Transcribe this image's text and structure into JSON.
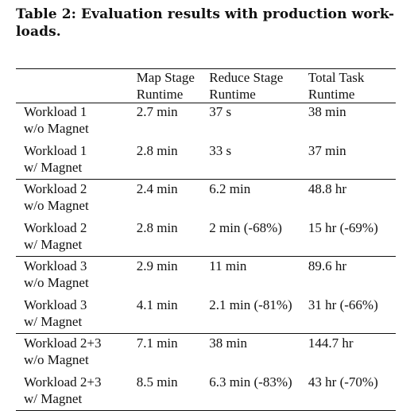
{
  "caption": {
    "line1": "Table 2: Evaluation results with production work-",
    "line2": "loads."
  },
  "table": {
    "headers": [
      [
        "",
        ""
      ],
      [
        "Map Stage",
        "Runtime"
      ],
      [
        "Reduce Stage",
        "Runtime"
      ],
      [
        "Total Task",
        "Runtime"
      ]
    ],
    "rows": [
      {
        "workload": [
          "Workload 1",
          "w/o Magnet"
        ],
        "map": "2.7 min",
        "reduce": "37 s",
        "total": "38 min"
      },
      {
        "workload": [
          "Workload 1",
          "w/ Magnet"
        ],
        "map": "2.8 min",
        "reduce": "33 s",
        "total": "37 min"
      },
      {
        "workload": [
          "Workload 2",
          "w/o Magnet"
        ],
        "map": "2.4 min",
        "reduce": "6.2 min",
        "total": "48.8 hr"
      },
      {
        "workload": [
          "Workload 2",
          "w/ Magnet"
        ],
        "map": "2.8 min",
        "reduce": "2 min (-68%)",
        "total": "15 hr (-69%)"
      },
      {
        "workload": [
          "Workload 3",
          "w/o Magnet"
        ],
        "map": "2.9 min",
        "reduce": "11 min",
        "total": "89.6 hr"
      },
      {
        "workload": [
          "Workload 3",
          "w/ Magnet"
        ],
        "map": "4.1 min",
        "reduce": "2.1 min (-81%)",
        "total": "31 hr (-66%)"
      },
      {
        "workload": [
          "Workload 2+3",
          "w/o Magnet"
        ],
        "map": "7.1 min",
        "reduce": "38 min",
        "total": "144.7 hr"
      },
      {
        "workload": [
          "Workload 2+3",
          "w/ Magnet"
        ],
        "map": "8.5 min",
        "reduce": "6.3 min (-83%)",
        "total": "43 hr (-70%)"
      }
    ]
  }
}
